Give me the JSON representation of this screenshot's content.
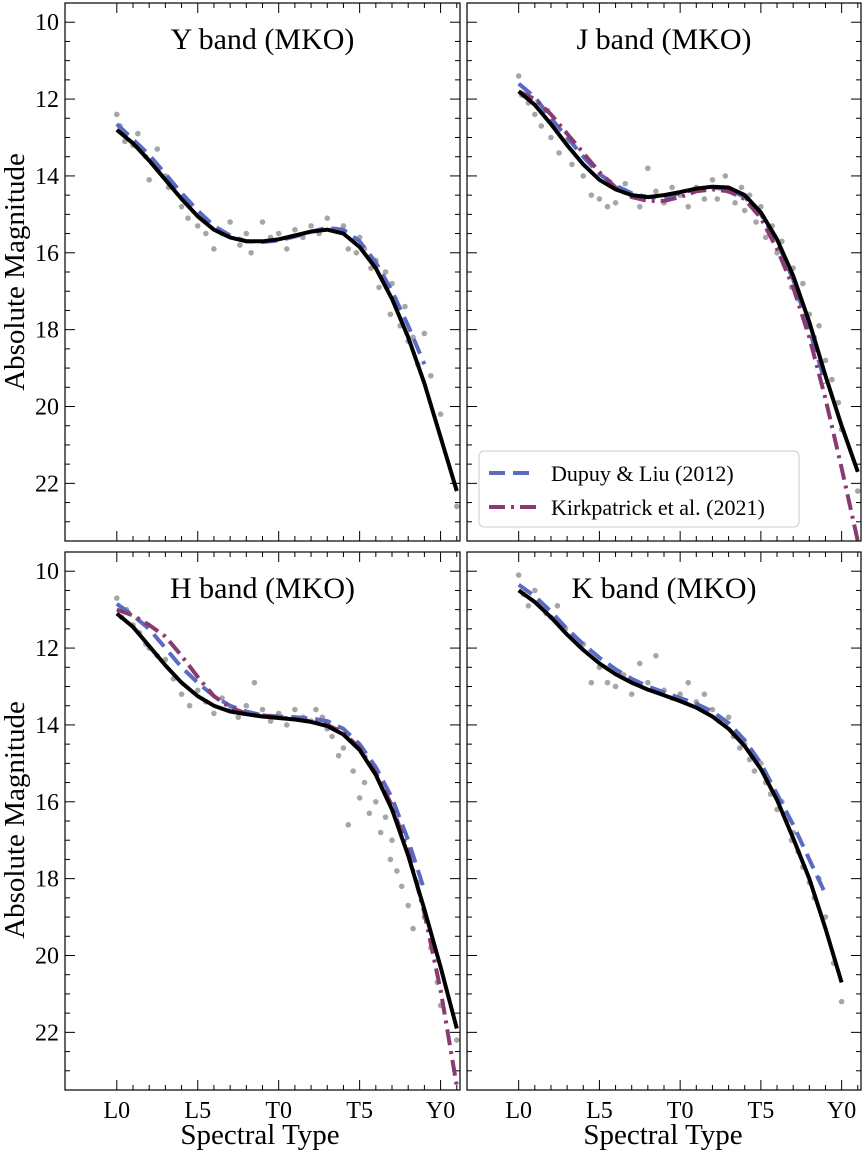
{
  "chart_data": [
    {
      "type": "line",
      "title": "Y band (MKO)",
      "xlabel": "",
      "ylabel": "Absolute Magnitude",
      "xlim": [
        -3.2,
        21.2
      ],
      "ylim": [
        23.5,
        9.5
      ],
      "x_tick_labels": [
        "L0",
        "L5",
        "T0",
        "T5",
        "Y0"
      ],
      "y_tick_labels": [
        "10",
        "12",
        "14",
        "16",
        "18",
        "20",
        "22"
      ],
      "grid": false,
      "series": [
        {
          "style": "dashed",
          "color": "#5a6bc4",
          "x": [
            0,
            1,
            2,
            3,
            4,
            5,
            6,
            7,
            8,
            9,
            10,
            11,
            12,
            13,
            14,
            15,
            16,
            17,
            18,
            19
          ],
          "y": [
            12.65,
            13.05,
            13.45,
            13.95,
            14.45,
            14.9,
            15.3,
            15.55,
            15.7,
            15.72,
            15.68,
            15.58,
            15.45,
            15.35,
            15.4,
            15.7,
            16.25,
            17.0,
            17.9,
            18.9
          ]
        },
        {
          "style": "solid",
          "color": "#000000",
          "x": [
            0,
            1,
            2,
            3,
            4,
            5,
            6,
            7,
            8,
            9,
            10,
            11,
            12,
            13,
            14,
            15,
            16,
            17,
            18,
            19,
            20,
            21
          ],
          "y": [
            12.8,
            13.15,
            13.6,
            14.1,
            14.6,
            15.05,
            15.4,
            15.6,
            15.7,
            15.7,
            15.65,
            15.55,
            15.45,
            15.4,
            15.5,
            15.85,
            16.4,
            17.2,
            18.2,
            19.4,
            20.8,
            22.2
          ]
        }
      ],
      "scatter": {
        "color": "#a6a6a6",
        "x": [
          0,
          0.2,
          0.5,
          1,
          1.3,
          1.8,
          2,
          2.5,
          3,
          3.2,
          4,
          4.4,
          5,
          5.5,
          6,
          6.5,
          7,
          7.6,
          8,
          8.3,
          9,
          9.5,
          10,
          10.5,
          11,
          11.5,
          12,
          12.5,
          13,
          13.3,
          14,
          14.3,
          14.8,
          15,
          15.3,
          15.7,
          16,
          16.2,
          16.6,
          16.9,
          17,
          17.2,
          17.5,
          17.8,
          18,
          18.3,
          18.6,
          19,
          19.4,
          20,
          21
        ],
        "y": [
          12.4,
          12.7,
          13.1,
          13.2,
          12.9,
          13.5,
          14.1,
          13.3,
          14.0,
          14.3,
          14.8,
          15.1,
          15.3,
          15.5,
          15.9,
          15.5,
          15.2,
          15.8,
          15.5,
          16.0,
          15.2,
          15.6,
          15.5,
          15.9,
          15.4,
          15.6,
          15.3,
          15.5,
          15.1,
          15.4,
          15.3,
          15.9,
          16.0,
          15.6,
          15.9,
          16.4,
          16.2,
          16.9,
          16.5,
          17.6,
          16.8,
          17.2,
          17.9,
          17.4,
          18.3,
          18.2,
          18.9,
          18.1,
          19.2,
          20.2,
          22.6
        ]
      }
    },
    {
      "type": "line",
      "title": "J band (MKO)",
      "xlabel": "",
      "ylabel": "",
      "xlim": [
        -3.2,
        21.2
      ],
      "ylim": [
        23.5,
        9.5
      ],
      "x_tick_labels": [
        "L0",
        "L5",
        "T0",
        "T5",
        "Y0"
      ],
      "y_tick_labels": [
        "10",
        "12",
        "14",
        "16",
        "18",
        "20",
        "22"
      ],
      "grid": false,
      "legend": {
        "placement": "lower-left",
        "entries": [
          "Dupuy & Liu (2012)",
          "Kirkpatrick et al. (2021)"
        ]
      },
      "series": [
        {
          "style": "dashed",
          "color": "#5a6bc4",
          "x": [
            0,
            1,
            2,
            3,
            4,
            5,
            6,
            7,
            8,
            9,
            10,
            11,
            12,
            13,
            14,
            15,
            16,
            17,
            18,
            19
          ],
          "y": [
            11.6,
            11.95,
            12.5,
            13.0,
            13.5,
            13.95,
            14.25,
            14.45,
            14.55,
            14.55,
            14.45,
            14.35,
            14.3,
            14.35,
            14.55,
            15.0,
            15.7,
            16.7,
            18.0,
            19.4
          ]
        },
        {
          "style": "dashdot",
          "color": "#8a3a72",
          "x": [
            0,
            1,
            2,
            3,
            4,
            5,
            6,
            7,
            8,
            9,
            10,
            11,
            12,
            13,
            14,
            15,
            16,
            17,
            18,
            19,
            20,
            21
          ],
          "y": [
            11.8,
            12.0,
            12.4,
            12.9,
            13.4,
            13.9,
            14.3,
            14.55,
            14.65,
            14.65,
            14.55,
            14.4,
            14.35,
            14.4,
            14.6,
            15.1,
            15.9,
            16.9,
            18.2,
            19.8,
            21.6,
            23.5
          ]
        },
        {
          "style": "solid",
          "color": "#000000",
          "x": [
            0,
            1,
            2,
            3,
            4,
            5,
            6,
            7,
            8,
            9,
            10,
            11,
            12,
            13,
            14,
            15,
            16,
            17,
            18,
            19,
            20,
            21
          ],
          "y": [
            11.8,
            12.15,
            12.65,
            13.2,
            13.7,
            14.1,
            14.35,
            14.5,
            14.55,
            14.5,
            14.42,
            14.33,
            14.28,
            14.3,
            14.5,
            14.95,
            15.65,
            16.6,
            17.8,
            19.2,
            20.5,
            21.7
          ]
        }
      ],
      "scatter": {
        "color": "#a6a6a6",
        "x": [
          0,
          0.2,
          0.6,
          1,
          1.4,
          1.8,
          2,
          2.5,
          3,
          3.3,
          4,
          4.5,
          5,
          5.5,
          6,
          6.6,
          7,
          7.5,
          8,
          8.5,
          9,
          9.5,
          10,
          10.5,
          11,
          11.5,
          12,
          12.3,
          12.8,
          13,
          13.4,
          13.8,
          14,
          14.3,
          14.7,
          15,
          15.3,
          15.7,
          16,
          16.3,
          16.6,
          16.9,
          17,
          17.3,
          17.6,
          18,
          18.3,
          18.6,
          19,
          19.4,
          19.8,
          20,
          21
        ],
        "y": [
          11.4,
          11.9,
          12.1,
          12.4,
          12.7,
          12.3,
          13.0,
          13.4,
          13.1,
          13.7,
          14.0,
          14.5,
          14.6,
          14.8,
          14.7,
          14.2,
          14.5,
          14.8,
          13.8,
          14.4,
          14.7,
          14.3,
          14.5,
          14.8,
          14.3,
          14.6,
          14.1,
          14.6,
          14.0,
          14.4,
          14.7,
          14.3,
          14.9,
          14.5,
          15.2,
          14.8,
          15.6,
          15.3,
          16.0,
          15.7,
          16.3,
          16.9,
          16.4,
          17.2,
          16.8,
          17.6,
          18.2,
          17.9,
          18.8,
          19.3,
          19.9,
          20.6,
          22.2
        ]
      }
    },
    {
      "type": "line",
      "title": "H band (MKO)",
      "xlabel": "Spectral Type",
      "ylabel": "Absolute Magnitude",
      "xlim": [
        -3.2,
        21.2
      ],
      "ylim": [
        23.5,
        9.5
      ],
      "x_tick_labels": [
        "L0",
        "L5",
        "T0",
        "T5",
        "Y0"
      ],
      "y_tick_labels": [
        "10",
        "12",
        "14",
        "16",
        "18",
        "20",
        "22"
      ],
      "grid": false,
      "series": [
        {
          "style": "dashed",
          "color": "#5a6bc4",
          "x": [
            0,
            1,
            2,
            3,
            4,
            5,
            6,
            7,
            8,
            9,
            10,
            11,
            12,
            13,
            14,
            15,
            16,
            17,
            18,
            19
          ],
          "y": [
            10.85,
            11.15,
            11.5,
            12.0,
            12.5,
            12.9,
            13.25,
            13.5,
            13.65,
            13.75,
            13.78,
            13.8,
            13.83,
            13.9,
            14.1,
            14.5,
            15.1,
            15.9,
            17.0,
            18.3
          ]
        },
        {
          "style": "dashdot",
          "color": "#8a3a72",
          "x": [
            0,
            1,
            2,
            3,
            4,
            5,
            6,
            7,
            8,
            9,
            10,
            11,
            12,
            13,
            14,
            15,
            16,
            17,
            18,
            19,
            20,
            21
          ],
          "y": [
            11.0,
            11.15,
            11.4,
            11.7,
            12.2,
            12.75,
            13.25,
            13.55,
            13.7,
            13.75,
            13.8,
            13.85,
            13.9,
            14.0,
            14.2,
            14.6,
            15.25,
            16.1,
            17.3,
            18.9,
            20.9,
            23.4
          ]
        },
        {
          "style": "solid",
          "color": "#000000",
          "x": [
            0,
            1,
            2,
            3,
            4,
            5,
            6,
            7,
            8,
            9,
            10,
            11,
            12,
            13,
            14,
            15,
            16,
            17,
            18,
            19,
            20,
            21
          ],
          "y": [
            11.1,
            11.45,
            11.95,
            12.45,
            12.9,
            13.25,
            13.5,
            13.65,
            13.72,
            13.78,
            13.82,
            13.86,
            13.92,
            14.03,
            14.25,
            14.65,
            15.3,
            16.2,
            17.4,
            18.8,
            20.3,
            21.9
          ]
        }
      ],
      "scatter": {
        "color": "#a6a6a6",
        "x": [
          0,
          0.3,
          0.6,
          1,
          1.4,
          1.8,
          2,
          2.5,
          3,
          3.5,
          4,
          4.5,
          5,
          5.5,
          6,
          6.5,
          7,
          7.5,
          8,
          8.5,
          9,
          9.5,
          10,
          10.5,
          11,
          11.5,
          12,
          12.3,
          12.7,
          13,
          13.3,
          13.7,
          14,
          14.3,
          14.6,
          15,
          15.3,
          15.6,
          16,
          16.3,
          16.6,
          16.9,
          17,
          17.3,
          17.6,
          18,
          18.3,
          18.6,
          19,
          19.4,
          19.8,
          20,
          21
        ],
        "y": [
          10.7,
          11.2,
          11.0,
          11.4,
          11.6,
          11.9,
          12.0,
          12.2,
          12.3,
          12.8,
          13.2,
          13.5,
          13.1,
          13.4,
          13.7,
          13.3,
          13.6,
          13.8,
          13.5,
          12.9,
          13.6,
          13.9,
          13.7,
          14.0,
          13.6,
          13.8,
          13.9,
          13.6,
          13.8,
          14.1,
          14.3,
          14.8,
          14.6,
          16.6,
          15.2,
          15.9,
          15.5,
          16.3,
          16.0,
          16.8,
          16.4,
          17.5,
          17.0,
          17.8,
          18.2,
          18.7,
          19.3,
          18.1,
          19.0,
          19.8,
          20.7,
          21.3,
          22.2
        ]
      }
    },
    {
      "type": "line",
      "title": "K band (MKO)",
      "xlabel": "Spectral Type",
      "ylabel": "",
      "xlim": [
        -3.2,
        21.2
      ],
      "ylim": [
        23.5,
        9.5
      ],
      "x_tick_labels": [
        "L0",
        "L5",
        "T0",
        "T5",
        "Y0"
      ],
      "y_tick_labels": [
        "10",
        "12",
        "14",
        "16",
        "18",
        "20",
        "22"
      ],
      "grid": false,
      "series": [
        {
          "style": "dashed",
          "color": "#5a6bc4",
          "x": [
            0,
            1,
            2,
            3,
            4,
            5,
            6,
            7,
            8,
            9,
            10,
            11,
            12,
            13,
            14,
            15,
            16,
            17,
            18,
            19
          ],
          "y": [
            10.35,
            10.65,
            11.05,
            11.5,
            11.9,
            12.25,
            12.55,
            12.8,
            13.0,
            13.15,
            13.3,
            13.45,
            13.65,
            13.95,
            14.4,
            15.0,
            15.8,
            16.6,
            17.5,
            18.4
          ]
        },
        {
          "style": "solid",
          "color": "#000000",
          "x": [
            0,
            1,
            2,
            3,
            4,
            5,
            6,
            7,
            8,
            9,
            10,
            11,
            12,
            13,
            14,
            15,
            16,
            17,
            18,
            19,
            20
          ],
          "y": [
            10.5,
            10.8,
            11.2,
            11.65,
            12.05,
            12.4,
            12.68,
            12.9,
            13.08,
            13.23,
            13.38,
            13.55,
            13.78,
            14.1,
            14.55,
            15.15,
            15.95,
            16.95,
            18.0,
            19.3,
            20.7
          ]
        }
      ],
      "scatter": {
        "color": "#a6a6a6",
        "x": [
          0,
          0.3,
          0.6,
          1,
          1.3,
          1.7,
          2,
          2.4,
          2.9,
          3.3,
          4,
          4.5,
          5,
          5.5,
          6,
          6.5,
          7,
          7.5,
          8,
          8.5,
          9,
          9.5,
          10,
          10.5,
          11,
          11.5,
          12,
          12.4,
          12.8,
          13,
          13.3,
          13.7,
          14,
          14.3,
          14.6,
          15,
          15.3,
          15.6,
          16,
          16.3,
          16.6,
          16.9,
          17,
          17.3,
          17.6,
          18,
          18.3,
          18.6,
          19,
          19.5,
          20
        ],
        "y": [
          10.1,
          10.6,
          10.9,
          10.5,
          10.8,
          11.1,
          11.2,
          10.9,
          11.5,
          11.7,
          11.9,
          12.9,
          12.5,
          12.9,
          13.0,
          12.7,
          13.2,
          12.4,
          12.9,
          12.2,
          13.1,
          13.3,
          13.2,
          12.9,
          13.4,
          13.2,
          13.6,
          13.9,
          14.0,
          13.8,
          14.3,
          14.6,
          14.5,
          14.9,
          15.2,
          15.0,
          15.5,
          15.8,
          16.2,
          16.0,
          16.5,
          17.0,
          16.8,
          17.3,
          17.7,
          18.1,
          18.5,
          18.0,
          19.0,
          20.2,
          21.2
        ]
      }
    }
  ]
}
